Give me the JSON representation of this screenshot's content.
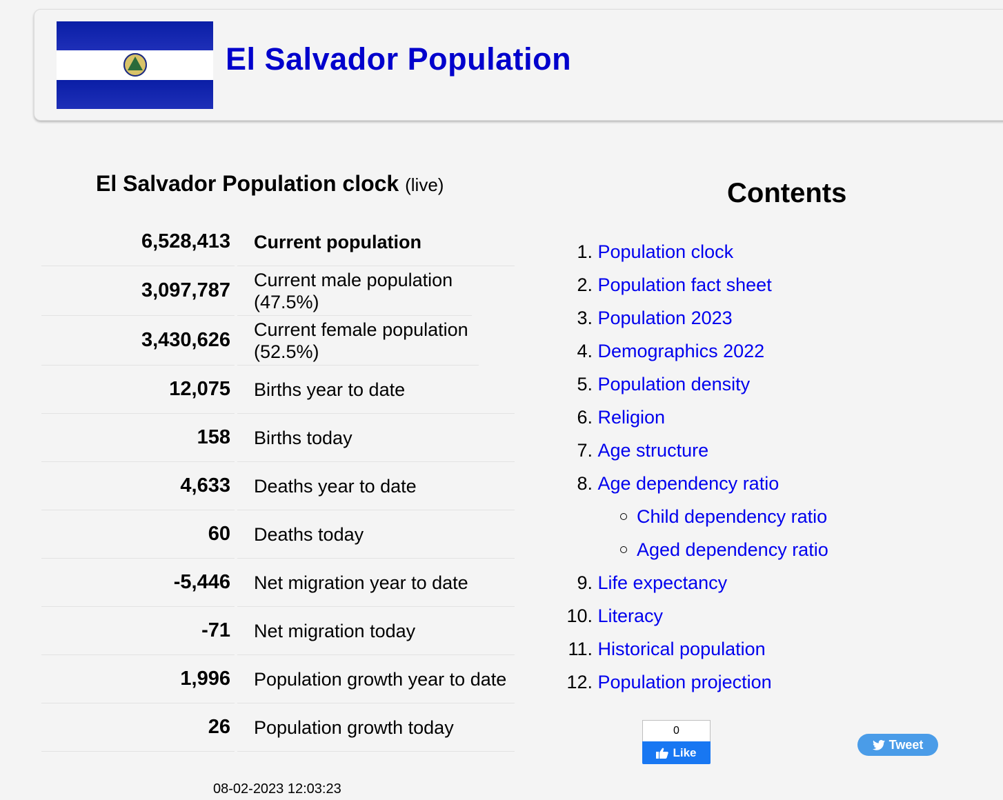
{
  "header": {
    "title": "El Salvador Population"
  },
  "clock": {
    "title": "El Salvador Population clock",
    "live": "(live)",
    "rows": [
      {
        "value": "6,528,413",
        "label": "Current population"
      },
      {
        "value": "3,097,787",
        "label": "Current male population (47.5%)"
      },
      {
        "value": "3,430,626",
        "label": "Current female population (52.5%)"
      },
      {
        "value": "12,075",
        "label": "Births year to date"
      },
      {
        "value": "158",
        "label": "Births today"
      },
      {
        "value": "4,633",
        "label": "Deaths year to date"
      },
      {
        "value": "60",
        "label": "Deaths today"
      },
      {
        "value": "-5,446",
        "label": "Net migration year to date"
      },
      {
        "value": "-71",
        "label": "Net migration today"
      },
      {
        "value": "1,996",
        "label": "Population growth year to date"
      },
      {
        "value": "26",
        "label": "Population growth today"
      }
    ],
    "timestamp": "08-02-2023 12:03:23"
  },
  "contents": {
    "title": "Contents",
    "items": [
      {
        "n": "1.",
        "label": "Population clock"
      },
      {
        "n": "2.",
        "label": "Population fact sheet"
      },
      {
        "n": "3.",
        "label": "Population 2023"
      },
      {
        "n": "4.",
        "label": "Demographics 2022"
      },
      {
        "n": "5.",
        "label": "Population density"
      },
      {
        "n": "6.",
        "label": "Religion"
      },
      {
        "n": "7.",
        "label": "Age structure"
      },
      {
        "n": "8.",
        "label": "Age dependency ratio"
      },
      {
        "n": "9.",
        "label": "Life expectancy"
      },
      {
        "n": "10.",
        "label": "Literacy"
      },
      {
        "n": "11.",
        "label": "Historical population"
      },
      {
        "n": "12.",
        "label": "Population projection"
      }
    ],
    "sub_items": [
      "Child dependency ratio",
      "Aged dependency ratio"
    ]
  },
  "social": {
    "like_count": "0",
    "like_label": "Like",
    "tweet_label": "Tweet"
  }
}
